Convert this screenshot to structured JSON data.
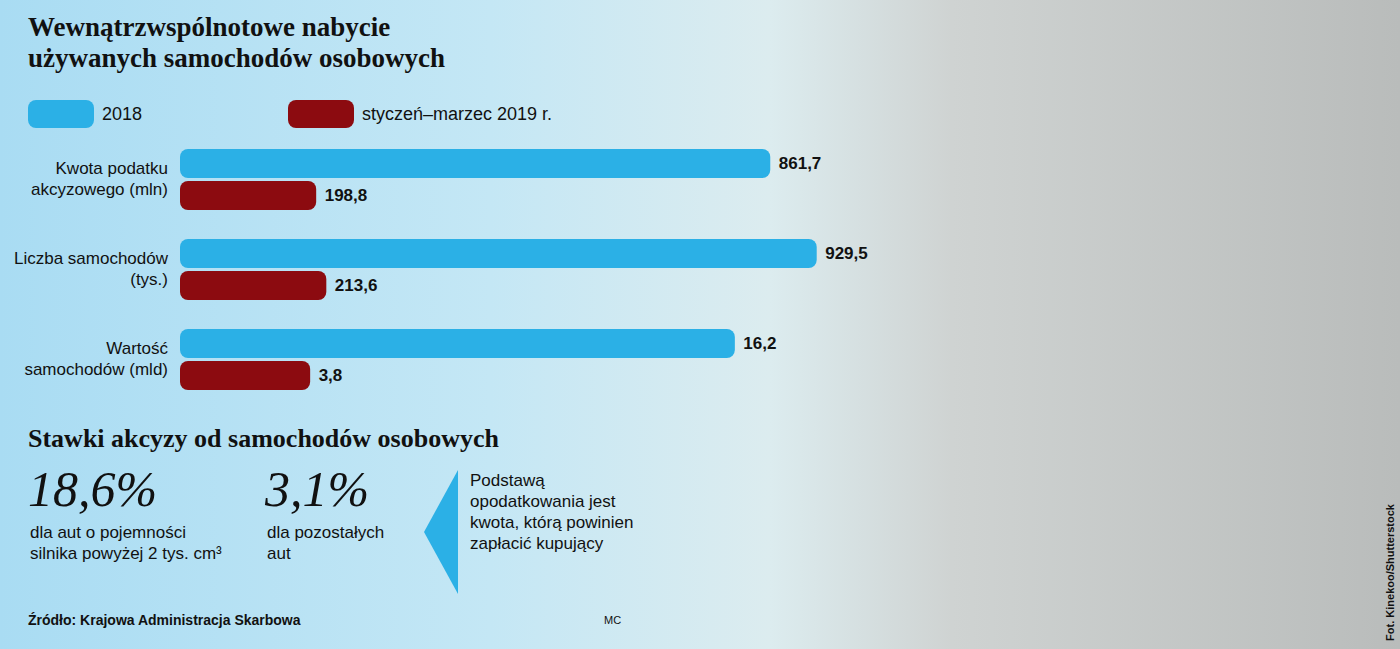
{
  "title": "Wewnątrzwspólnotowe nabycie używanych samochodów osobowych",
  "chart_data": [
    {
      "type": "bar",
      "orientation": "horizontal",
      "title": "Kwota podatku akcyzowego (mln)",
      "series": [
        {
          "name": "2018",
          "color": "#2bb0e6",
          "values": [
            861.7
          ],
          "value_labels": [
            "861,7"
          ]
        },
        {
          "name": "styczeń–marzec 2019 r.",
          "color": "#8c0b10",
          "values": [
            198.8
          ],
          "value_labels": [
            "198,8"
          ]
        }
      ],
      "xlim": [
        0,
        1000
      ],
      "data_labels": true,
      "tick_labels": false,
      "legend": "top"
    },
    {
      "type": "bar",
      "orientation": "horizontal",
      "title": "Liczba samochodów (tys.)",
      "series": [
        {
          "name": "2018",
          "color": "#2bb0e6",
          "values": [
            929.5
          ],
          "value_labels": [
            "929,5"
          ]
        },
        {
          "name": "styczeń–marzec 2019 r.",
          "color": "#8c0b10",
          "values": [
            213.6
          ],
          "value_labels": [
            "213,6"
          ]
        }
      ],
      "xlim": [
        0,
        1000
      ],
      "data_labels": true,
      "tick_labels": false
    },
    {
      "type": "bar",
      "orientation": "horizontal",
      "title": "Wartość samochodów (mld)",
      "series": [
        {
          "name": "2018",
          "color": "#2bb0e6",
          "values": [
            16.2
          ],
          "value_labels": [
            "16,2"
          ]
        },
        {
          "name": "styczeń–marzec 2019 r.",
          "color": "#8c0b10",
          "values": [
            3.8
          ],
          "value_labels": [
            "3,8"
          ]
        }
      ],
      "xlim": [
        0,
        20
      ],
      "data_labels": true,
      "tick_labels": false
    }
  ],
  "rates": {
    "heading": "Stawki akcyzy od samochodów osobowych",
    "items": [
      {
        "rate": "18,6%",
        "text": "dla aut o pojemności silnika powyżej 2 tys. cm³"
      },
      {
        "rate": "3,1%",
        "text": "dla pozostałych aut"
      }
    ],
    "note": "Podstawą opodatkowania jest kwota, którą powinien zapłacić kupujący"
  },
  "source": "Źródło: Krajowa Administracja Skarbowa",
  "author": "MC",
  "photo_credit": "Fot. Kinekoo/Shutterstock"
}
